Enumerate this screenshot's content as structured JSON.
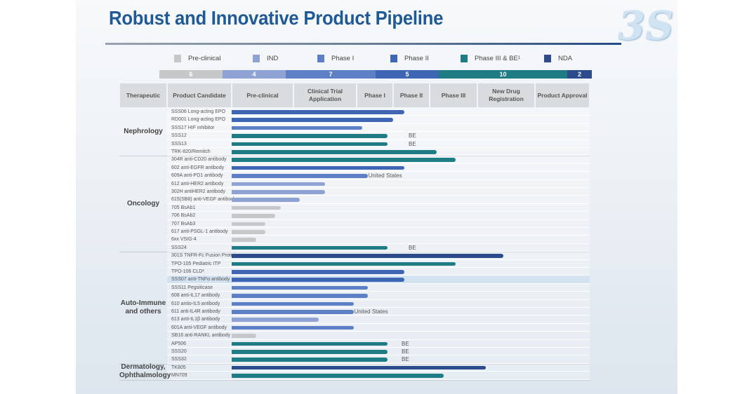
{
  "title": "Robust and Innovative Product Pipeline",
  "logo_text": "3S",
  "colors": {
    "Pre-clinical": "#c6c7c9",
    "IND": "#8ea2d3",
    "Phase I": "#5d7fc6",
    "Phase II": "#3e66b4",
    "Phase III": "#1f7b84",
    "NDA": "#2c4b8c"
  },
  "legend": [
    {
      "label": "Pre-clinical",
      "stage": "Pre-clinical"
    },
    {
      "label": "IND",
      "stage": "IND"
    },
    {
      "label": "Phase I",
      "stage": "Phase I"
    },
    {
      "label": "Phase II",
      "stage": "Phase II"
    },
    {
      "label": "Phase III & BE",
      "sup": "1",
      "stage": "Phase III"
    },
    {
      "label": "NDA",
      "stage": "NDA"
    }
  ],
  "counts": [
    {
      "stage": "Pre-clinical",
      "value": "6"
    },
    {
      "stage": "IND",
      "value": "4"
    },
    {
      "stage": "Phase I",
      "value": "7"
    },
    {
      "stage": "Phase II",
      "value": "5"
    },
    {
      "stage": "Phase III",
      "value": "10"
    },
    {
      "stage": "NDA",
      "value": "2"
    }
  ],
  "headers": [
    "Therapeutic",
    "Product Candidate",
    "Pre-clinical",
    "Clinical Trial Application",
    "Phase I",
    "Phase II",
    "Phase III",
    "New Drug Registration",
    "Product Approval"
  ],
  "chart_data": {
    "type": "bar",
    "orientation": "horizontal",
    "x_categories": [
      "Pre-clinical",
      "Clinical Trial Application",
      "Phase I",
      "Phase II",
      "Phase III",
      "New Drug Registration",
      "Product Approval"
    ],
    "value_unit": "development stage columns reached (0 = start of Pre-clinical, 7 = end of Product Approval)",
    "groups": [
      {
        "name": "Nephrology",
        "items": [
          {
            "name": "SSS06 Long-acting EPO",
            "stage": "Phase II",
            "progress": 3.3
          },
          {
            "name": "RD001 Long-acting EPO",
            "stage": "Phase II",
            "progress": 3.0
          },
          {
            "name": "SSS17 HIF inhibitor",
            "stage": "Phase I",
            "progress": 2.15
          },
          {
            "name": "SSS12",
            "stage": "Phase III",
            "progress": 2.85,
            "note": "BE"
          },
          {
            "name": "SSS13",
            "stage": "Phase III",
            "progress": 2.85,
            "note": "BE"
          },
          {
            "name": "TRK-820/Remitch",
            "stage": "Phase III",
            "progress": 4.15
          }
        ]
      },
      {
        "name": "Oncology",
        "items": [
          {
            "name": "304R anti-CD20 antibody",
            "stage": "Phase III",
            "progress": 4.55
          },
          {
            "name": "602 anti-EGFR antibody",
            "stage": "Phase II",
            "progress": 3.3
          },
          {
            "name": "609A anti-PD1 antibody",
            "stage": "Phase I",
            "progress": 2.3,
            "note": "United States"
          },
          {
            "name": "612   anti-HER2 antibody",
            "stage": "IND",
            "progress": 1.5
          },
          {
            "name": "302H antiHER2 antibody",
            "stage": "IND",
            "progress": 1.5
          },
          {
            "name": "615(SB8) anti-VEGF antibody",
            "stage": "IND",
            "progress": 1.1
          },
          {
            "name": "705   BsAb1",
            "stage": "Pre-clinical",
            "progress": 0.8
          },
          {
            "name": "706   BsAb2",
            "stage": "Pre-clinical",
            "progress": 0.7
          },
          {
            "name": "707   BsAb3",
            "stage": "Pre-clinical",
            "progress": 0.55
          },
          {
            "name": "617  anti-PSGL-1 antibody",
            "stage": "Pre-clinical",
            "progress": 0.55
          },
          {
            "name": "6xx   VSIG-4",
            "stage": "Pre-clinical",
            "progress": 0.4
          },
          {
            "name": "SSS24",
            "stage": "Phase III",
            "progress": 2.85,
            "note": "BE"
          }
        ]
      },
      {
        "name": "Auto-Immune and others",
        "items": [
          {
            "name": "301S TNFR-Fc Fusion Protein",
            "stage": "NDA",
            "progress": 5.45
          },
          {
            "name": "TPO-105 Pediatric ITP",
            "stage": "Phase III",
            "progress": 4.55
          },
          {
            "name": "TPO-106 CLD²",
            "stage": "Phase II",
            "progress": 3.3
          },
          {
            "name": "SSS07  anti-TNFα antibody",
            "stage": "Phase II",
            "progress": 3.3
          },
          {
            "name": "SSS11  Pegsiticase",
            "stage": "Phase I",
            "progress": 2.3
          },
          {
            "name": "608  anti-IL17 antibody",
            "stage": "Phase I",
            "progress": 2.3
          },
          {
            "name": "610 antio-IL5 antibody",
            "stage": "Phase I",
            "progress": 1.95
          },
          {
            "name": "611 anti-IL4R antibody",
            "stage": "Phase I",
            "progress": 1.95,
            "note": "United States"
          },
          {
            "name": "613 anti-IL1β antibody",
            "stage": "IND",
            "progress": 1.4
          },
          {
            "name": "601A  anti-VEGF antibody",
            "stage": "Phase I",
            "progress": 1.95
          },
          {
            "name": "SB16 anti-RANKL antibody",
            "stage": "Pre-clinical",
            "progress": 0.4
          },
          {
            "name": "AP506",
            "stage": "Phase III",
            "progress": 2.85,
            "note": "BE"
          },
          {
            "name": "SSS20",
            "stage": "Phase III",
            "progress": 2.85,
            "note": "BE"
          },
          {
            "name": "SSS32",
            "stage": "Phase III",
            "progress": 2.85,
            "note": "BE"
          }
        ]
      },
      {
        "name": "Dermatology, Ophthalmology",
        "items": [
          {
            "name": "TK805",
            "stage": "NDA",
            "progress": 5.15
          },
          {
            "name": "MN709",
            "stage": "Phase III",
            "progress": 4.3
          }
        ]
      }
    ]
  }
}
